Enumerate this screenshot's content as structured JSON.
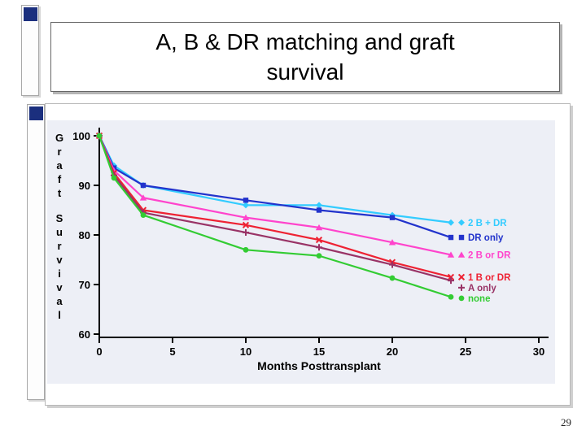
{
  "slide": {
    "page_number": "29"
  },
  "title": {
    "line1": "A, B & DR matching and graft",
    "line2": "survival"
  },
  "colors": {
    "accent_navy": "#1b2f7e",
    "chart_bg": "#edeff6",
    "axis": "#000000"
  },
  "chart_data": {
    "type": "line",
    "title": "",
    "xlabel": "Months Posttransplant",
    "ylabel": "Graft Survival",
    "xlim": [
      0,
      30
    ],
    "ylim": [
      60,
      100
    ],
    "xticks": [
      0,
      5,
      10,
      15,
      20,
      25,
      30
    ],
    "yticks": [
      100,
      90,
      80,
      70,
      60
    ],
    "grid": false,
    "legend_position": "right-inside",
    "x": [
      0,
      1,
      3,
      10,
      15,
      20,
      24
    ],
    "series": [
      {
        "name": "2 B + DR",
        "color": "#33ccff",
        "marker": "diamond",
        "values": [
          100,
          94,
          90,
          86,
          86,
          84,
          82.5
        ]
      },
      {
        "name": "DR only",
        "color": "#2233cc",
        "marker": "square",
        "values": [
          100,
          93.5,
          90,
          87,
          85,
          83.5,
          79.5
        ]
      },
      {
        "name": "2 B or DR",
        "color": "#ff44cc",
        "marker": "triangle",
        "values": [
          100,
          93,
          87.5,
          83.5,
          81.5,
          78.5,
          76
        ]
      },
      {
        "name": "1 B or DR",
        "color": "#ee2233",
        "marker": "x",
        "values": [
          100,
          92.5,
          85,
          82,
          79,
          74.5,
          71.5
        ]
      },
      {
        "name": "A only",
        "color": "#993366",
        "marker": "plus",
        "values": [
          100,
          92,
          84.5,
          80.5,
          77.5,
          74,
          70.8
        ]
      },
      {
        "name": "none",
        "color": "#33cc33",
        "marker": "circle",
        "values": [
          100,
          91.5,
          84,
          77,
          75.8,
          71.3,
          67.5
        ]
      }
    ]
  }
}
